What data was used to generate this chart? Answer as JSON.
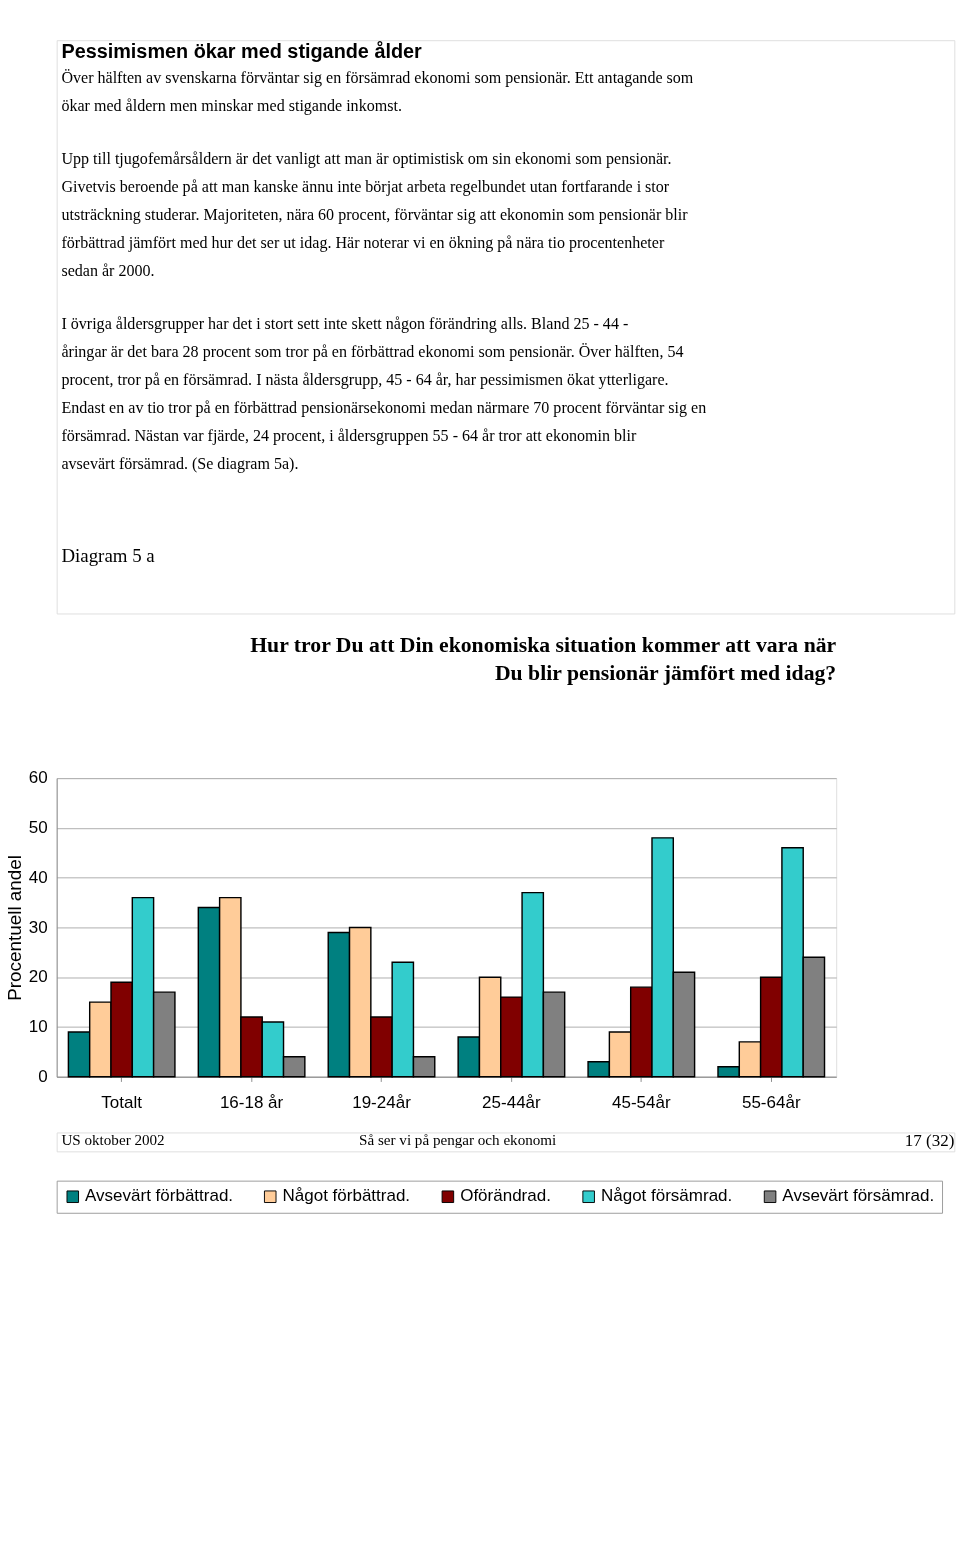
{
  "chart_data": {
    "type": "bar",
    "title": "Hur tror Du att Din ekonomiska situation kommer att vara när Du blir pensionär jämfört med idag?",
    "ylabel": "Procentuell andel",
    "categories": [
      "Totalt",
      "16-18 år",
      "19-24år",
      "25-44år",
      "45-54år",
      "55-64år"
    ],
    "series": [
      {
        "name": "Avsevärt förbättrad.",
        "color": "#008080",
        "values": [
          9,
          34,
          29,
          8,
          3,
          2
        ]
      },
      {
        "name": "Något förbättrad.",
        "color": "#ffcc99",
        "values": [
          15,
          36,
          30,
          20,
          9,
          7
        ]
      },
      {
        "name": "Oförändrad.",
        "color": "#800000",
        "values": [
          19,
          12,
          12,
          16,
          18,
          20
        ]
      },
      {
        "name": "Något försämrad.",
        "color": "#33cccc",
        "values": [
          36,
          11,
          23,
          37,
          48,
          46
        ]
      },
      {
        "name": "Avsevärt försämrad.",
        "color": "#808080",
        "values": [
          17,
          4,
          4,
          17,
          21,
          24
        ]
      }
    ],
    "ylim": [
      0,
      60
    ],
    "yticks": [
      0,
      10,
      20,
      30,
      40,
      50,
      60
    ],
    "grid": "y",
    "legend": "bottom",
    "annotations": [
      "Pessimismen ökar med stigande ålder",
      "Över hälften av svenskarna förväntar sig en försämrad ekonomi som pensionär. Ett antagande som ökar med åldern men minskar med stigande inkomst.",
      "Upp till tjugofemårsåldern är det vanligt att man är optimistisk om sin ekonomi som pensionär. Givetvis beroende på att man kanske ännu inte börjat arbeta regelbundet utan fortfarande i stor utsträckning studerar. Majoriteten, nära 60 procent, förväntar sig att ekonomin som pensionär blir förbättrad jämfört med hur det ser ut idag. Här noterar vi en ökning på nära tio procentenheter sedan år 2000.",
      "I övriga åldersgrupper har det i stort sett inte skett någon förändring alls. Bland 25 - 44 - åringar är det bara 28 procent som tror på en förbättrad ekonomi som pensionär. Över hälften, 54 procent, tror på en försämrad. I nästa åldersgrupp, 45 - 64 år, har pessimismen ökat ytterligare. Endast en av tio tror på en förbättrad pensionärsekonomi medan närmare 70 procent förväntar sig en försämrad. Nästan var fjärde, 24 procent, i åldersgruppen 55 - 64 år tror att ekonomin blir avsevärt försämrad. (Se diagram 5a).",
      "Diagram 5 a",
      "US oktober 2002",
      "Så ser vi på pengar och ekonomi",
      "17 (32)"
    ]
  }
}
